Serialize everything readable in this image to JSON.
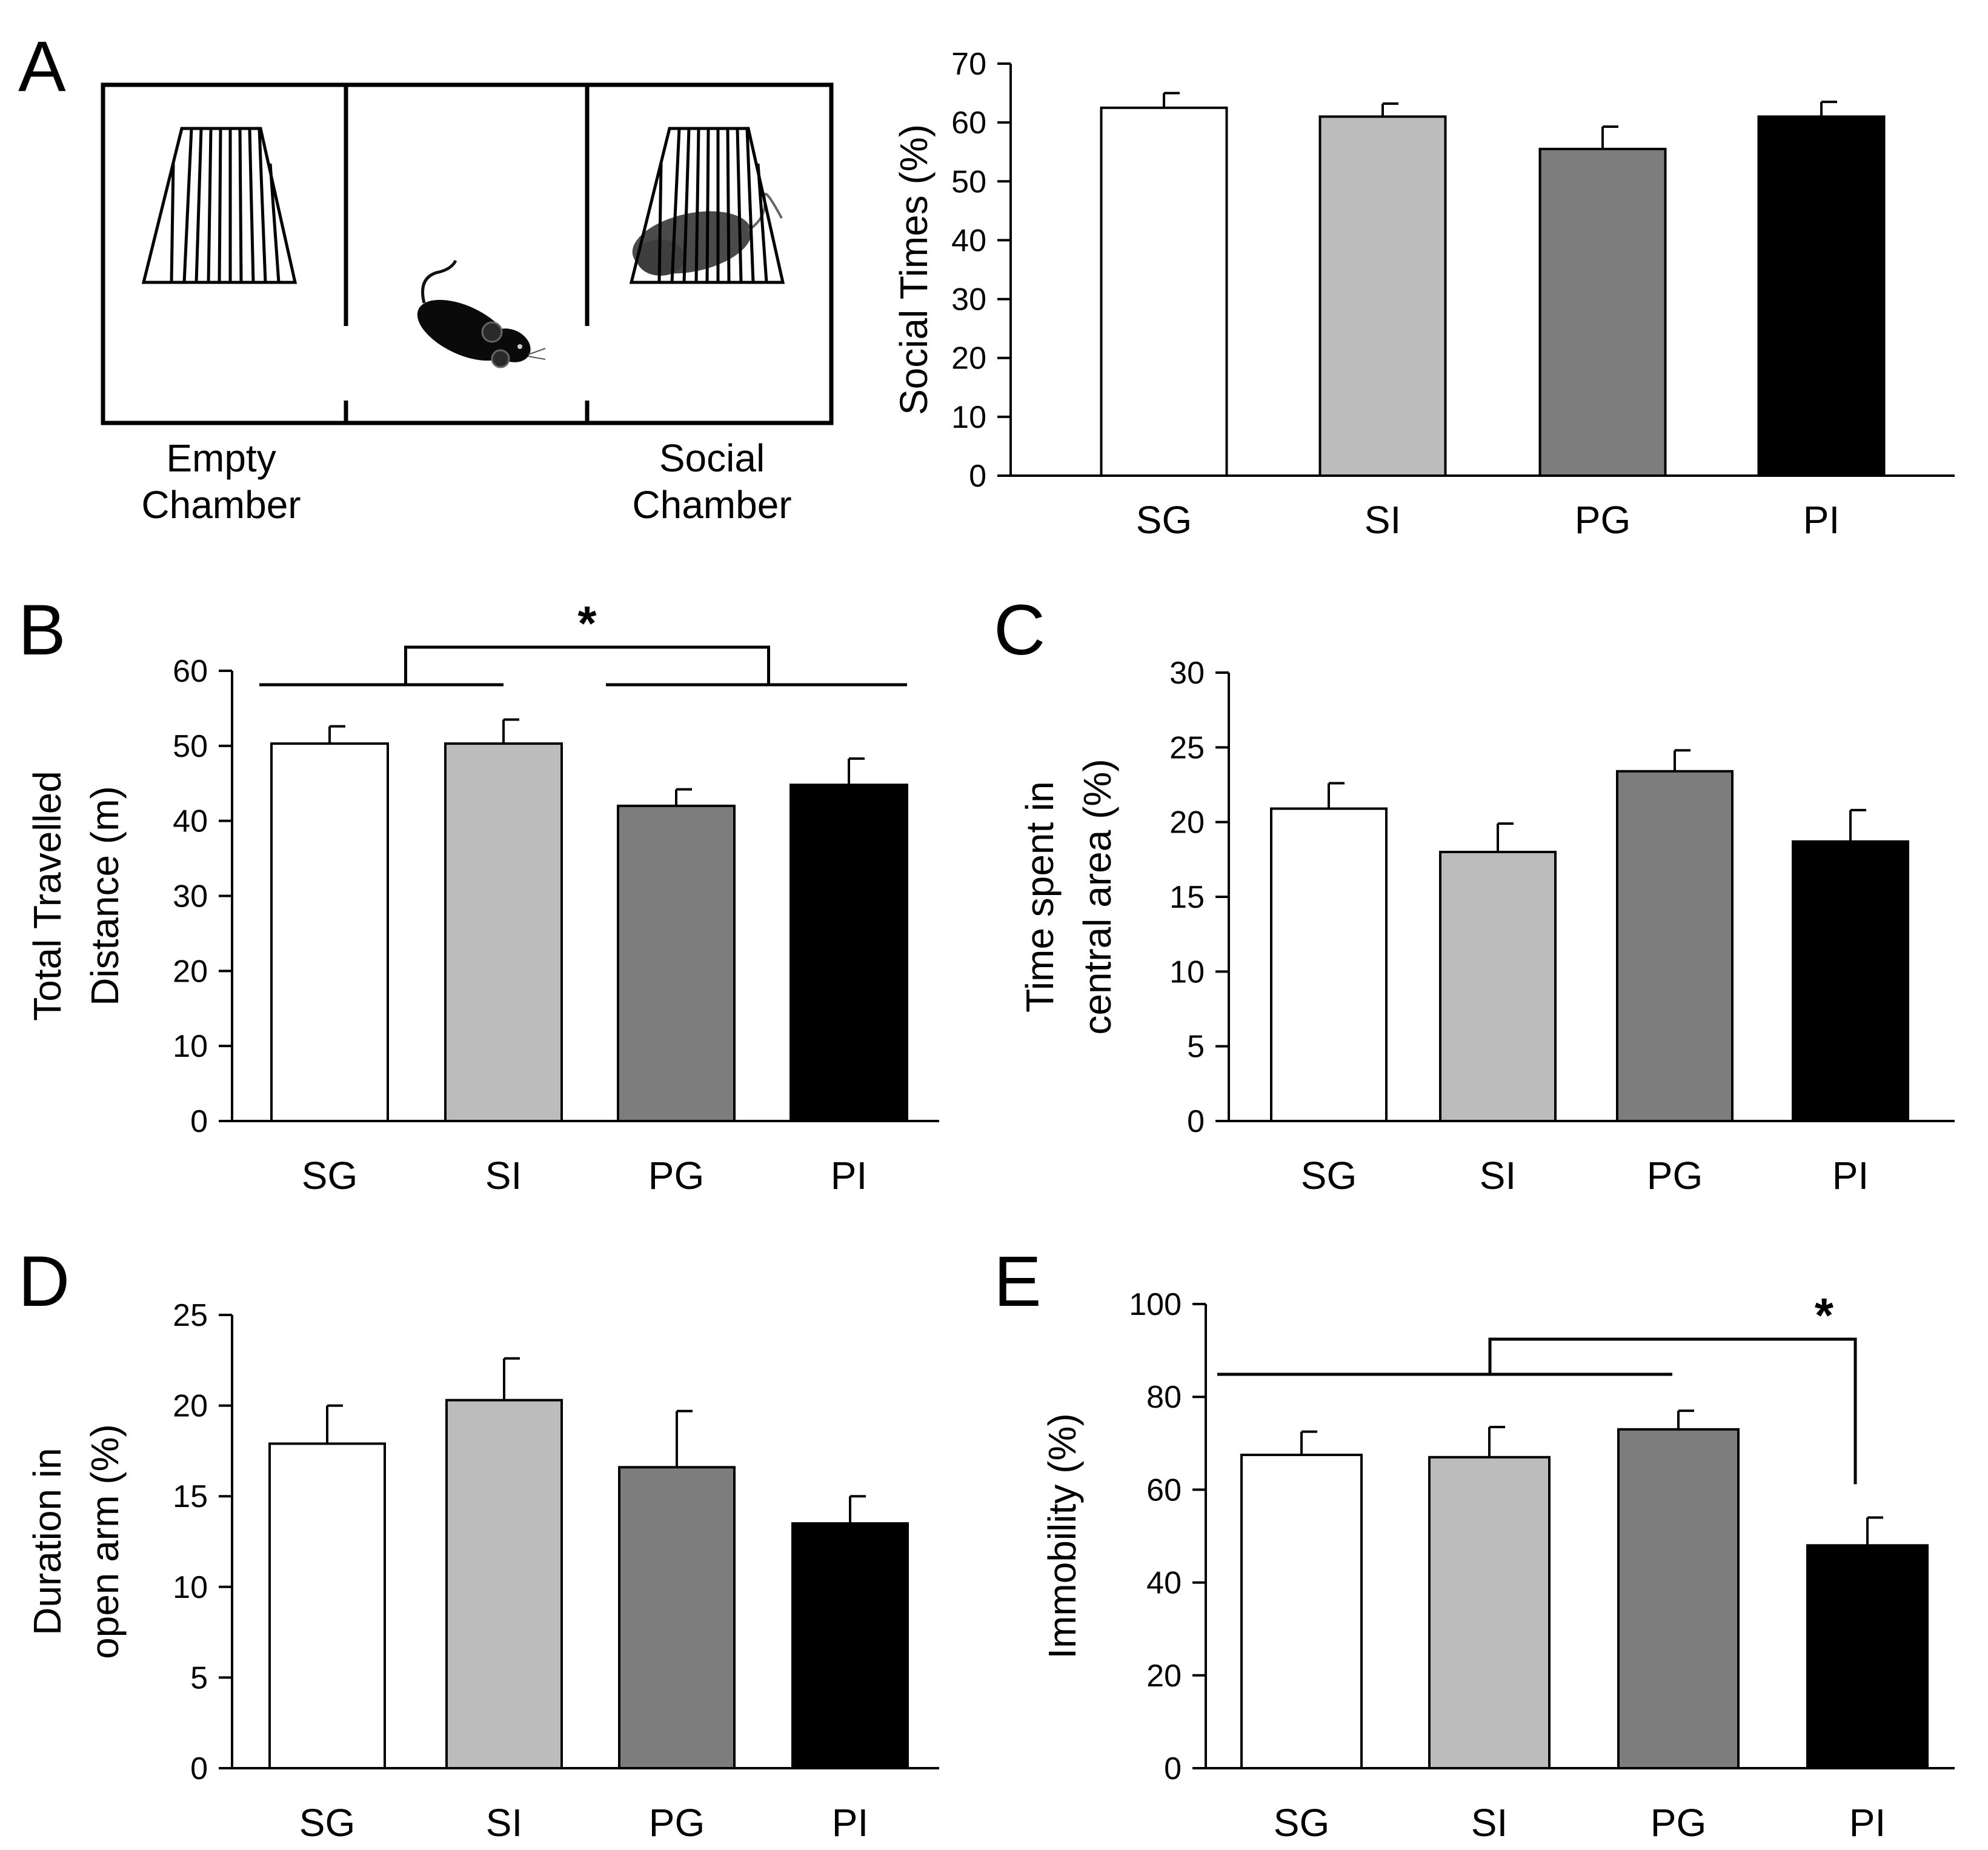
{
  "colors": {
    "SG": "#ffffff",
    "SI": "#bcbcbc",
    "PG": "#7d7d7d",
    "PI": "#000000",
    "axis": "#000000"
  },
  "panel_a": {
    "letter": "A",
    "left_chamber_label": [
      "Empty",
      "Chamber"
    ],
    "right_chamber_label": [
      "Social",
      "Chamber"
    ],
    "icons": [
      "empty-cage-icon",
      "test-mouse-icon",
      "caged-stranger-mouse-icon"
    ]
  },
  "chart_data": [
    {
      "panel": "A",
      "type": "bar",
      "categories": [
        "SG",
        "SI",
        "PG",
        "PI"
      ],
      "values": [
        62.5,
        61,
        55.5,
        61
      ],
      "errors": [
        2.5,
        2.2,
        3.8,
        2.5
      ],
      "ylabel": [
        "Social Times (%)"
      ],
      "ylim": [
        0,
        70
      ],
      "yticks": [
        0,
        10,
        20,
        30,
        40,
        50,
        60,
        70
      ],
      "significance": null
    },
    {
      "panel": "B",
      "type": "bar",
      "categories": [
        "SG",
        "SI",
        "PG",
        "PI"
      ],
      "values": [
        50.3,
        50.3,
        42,
        44.8
      ],
      "errors": [
        2.3,
        3.2,
        2.2,
        3.5
      ],
      "ylabel": [
        "Total Travelled",
        "Distance (m)"
      ],
      "ylim": [
        0,
        60
      ],
      "yticks": [
        0,
        10,
        20,
        30,
        40,
        50,
        60
      ],
      "significance": {
        "left": [
          "SG",
          "SI"
        ],
        "right": [
          "PG",
          "PI"
        ],
        "label": "*"
      }
    },
    {
      "panel": "C",
      "type": "bar",
      "categories": [
        "SG",
        "SI",
        "PG",
        "PI"
      ],
      "values": [
        20.9,
        18,
        23.4,
        18.7
      ],
      "errors": [
        1.7,
        1.9,
        1.4,
        2.1
      ],
      "ylabel": [
        "Time spent in",
        "central area (%)"
      ],
      "ylim": [
        0,
        30
      ],
      "yticks": [
        0,
        5,
        10,
        15,
        20,
        25,
        30
      ],
      "significance": null
    },
    {
      "panel": "D",
      "type": "bar",
      "categories": [
        "SG",
        "SI",
        "PG",
        "PI"
      ],
      "values": [
        17.9,
        20.3,
        16.6,
        13.5
      ],
      "errors": [
        2.1,
        2.3,
        3.1,
        1.5
      ],
      "ylabel": [
        "Duration in",
        "open arm (%)"
      ],
      "ylim": [
        0,
        25
      ],
      "yticks": [
        0,
        5,
        10,
        15,
        20,
        25
      ],
      "significance": null
    },
    {
      "panel": "E",
      "type": "bar",
      "categories": [
        "SG",
        "SI",
        "PG",
        "PI"
      ],
      "values": [
        67.5,
        67,
        73,
        48
      ],
      "errors": [
        5,
        6.5,
        4,
        6
      ],
      "ylabel": [
        "Immobility (%)"
      ],
      "ylim": [
        0,
        100
      ],
      "yticks": [
        0,
        20,
        40,
        60,
        80,
        100
      ],
      "significance": {
        "left": [
          "SG",
          "SI",
          "PG"
        ],
        "right": [
          "PI"
        ],
        "label": "*"
      }
    }
  ]
}
